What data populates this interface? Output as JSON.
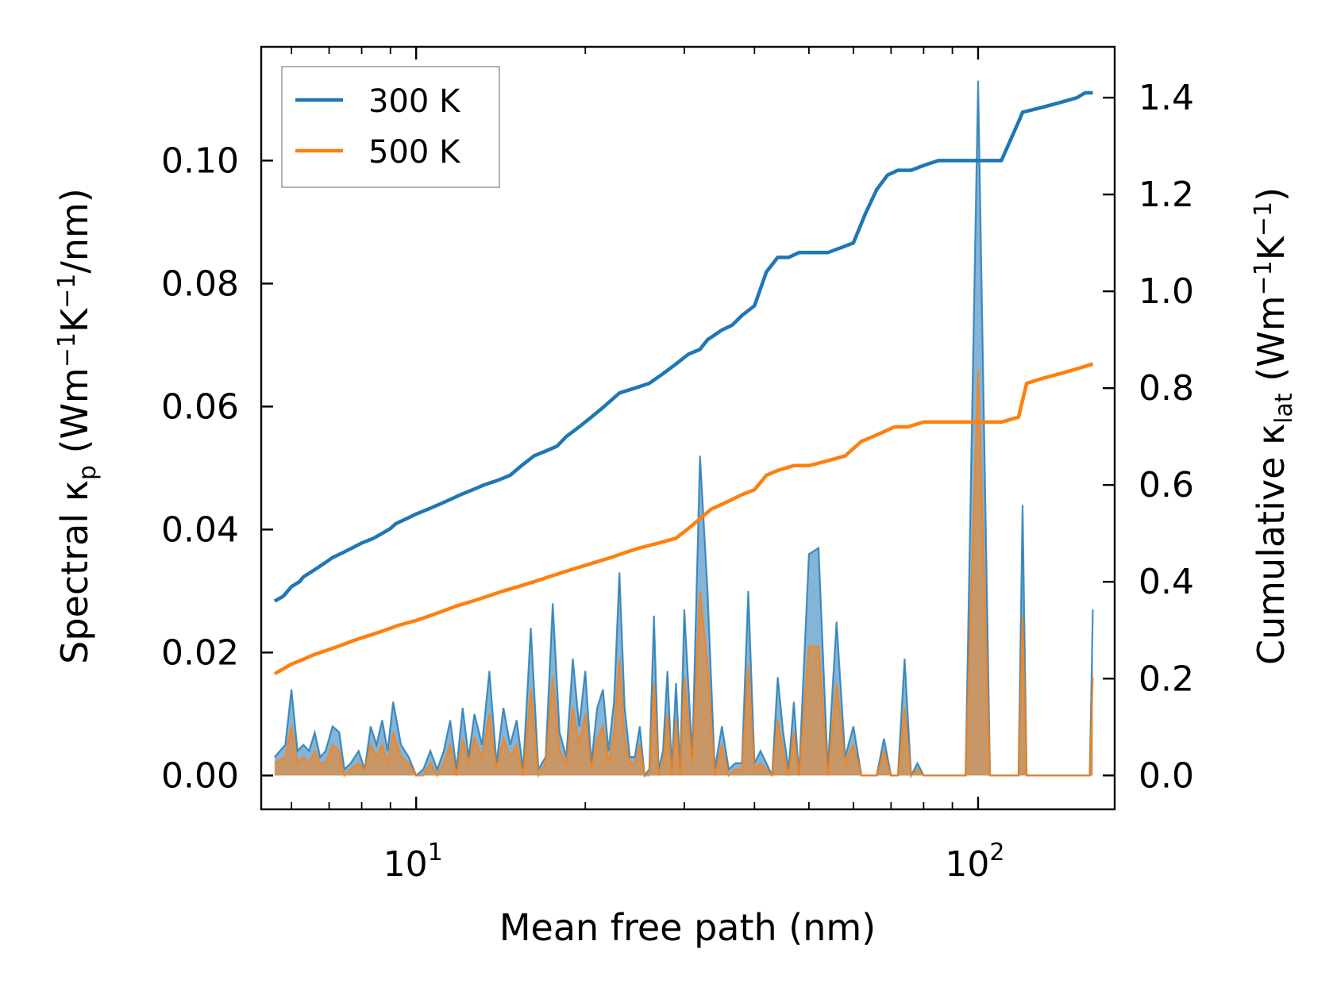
{
  "chart_data": {
    "type": "line",
    "xlabel": "Mean free path (nm)",
    "xscale": "log",
    "xlim": [
      5.3,
      175
    ],
    "x_ticks": [
      {
        "value": 10,
        "base": "10",
        "exp": "1"
      },
      {
        "value": 100,
        "base": "10",
        "exp": "2"
      }
    ],
    "left_axis": {
      "label_prefix": "Spectral κ",
      "label_sub": "p",
      "label_unit_a": " (Wm",
      "label_sup_a": "−1",
      "label_unit_b": "K",
      "label_sup_b": "−1",
      "label_unit_c": "/nm)",
      "ylim": [
        -0.0055,
        0.1185
      ],
      "ticks": [
        0.0,
        0.02,
        0.04,
        0.06,
        0.08,
        0.1
      ],
      "tick_labels": [
        "0.00",
        "0.02",
        "0.04",
        "0.06",
        "0.08",
        "0.10"
      ]
    },
    "right_axis": {
      "label_prefix": "Cumulative κ",
      "label_sub": "lat",
      "label_unit_a": " (Wm",
      "label_sup_a": "−1",
      "label_unit_b": "K",
      "label_sup_b": "−1",
      "label_unit_c": ")",
      "ylim": [
        -0.07,
        1.505
      ],
      "ticks": [
        0.0,
        0.2,
        0.4,
        0.6,
        0.8,
        1.0,
        1.2,
        1.4
      ],
      "tick_labels": [
        "0.0",
        "0.2",
        "0.4",
        "0.6",
        "0.8",
        "1.0",
        "1.2",
        "1.4"
      ]
    },
    "legend": {
      "position": "top-left",
      "entries": [
        {
          "label": "300 K",
          "color": "#1f77b4"
        },
        {
          "label": "500 K",
          "color": "#ff7f0e"
        }
      ]
    },
    "series": [
      {
        "name": "300 K",
        "color": "#1f77b4",
        "axis": "right",
        "kind": "cumulative",
        "x": [
          5.6,
          5.8,
          5.9,
          6.0,
          6.2,
          6.3,
          6.5,
          6.7,
          6.9,
          7.1,
          7.4,
          7.7,
          8.0,
          8.4,
          8.7,
          9.0,
          9.2,
          9.6,
          10.0,
          10.5,
          11.0,
          11.5,
          12.0,
          12.6,
          13.2,
          14.0,
          14.7,
          15.4,
          16.2,
          17.0,
          17.8,
          18.5,
          19.5,
          20.5,
          21.5,
          23.0,
          24.5,
          26.0,
          27.5,
          29.0,
          30.5,
          32.0,
          33.0,
          34.0,
          35.0,
          36.5,
          38.0,
          40.0,
          42.0,
          44.0,
          46.0,
          48.0,
          51.0,
          54.0,
          57.0,
          60.0,
          63.0,
          66.0,
          69.0,
          72.0,
          76.0,
          80.0,
          85.0,
          90.0,
          100.0,
          110.0,
          118.0,
          120.0,
          130.0,
          140.0,
          150.0,
          155.0,
          160.0
        ],
        "y": [
          0.36,
          0.37,
          0.38,
          0.39,
          0.4,
          0.41,
          0.42,
          0.43,
          0.44,
          0.45,
          0.46,
          0.47,
          0.48,
          0.49,
          0.5,
          0.51,
          0.52,
          0.53,
          0.54,
          0.55,
          0.56,
          0.57,
          0.58,
          0.59,
          0.6,
          0.61,
          0.62,
          0.64,
          0.66,
          0.67,
          0.68,
          0.7,
          0.72,
          0.74,
          0.76,
          0.79,
          0.8,
          0.81,
          0.83,
          0.85,
          0.87,
          0.88,
          0.9,
          0.91,
          0.92,
          0.93,
          0.95,
          0.97,
          1.04,
          1.07,
          1.07,
          1.08,
          1.08,
          1.08,
          1.09,
          1.1,
          1.16,
          1.21,
          1.24,
          1.25,
          1.25,
          1.26,
          1.27,
          1.27,
          1.27,
          1.27,
          1.35,
          1.37,
          1.38,
          1.39,
          1.4,
          1.41,
          1.41
        ]
      },
      {
        "name": "500 K",
        "color": "#ff7f0e",
        "axis": "right",
        "kind": "cumulative",
        "x": [
          5.6,
          5.8,
          6.0,
          6.3,
          6.6,
          7.0,
          7.4,
          7.8,
          8.3,
          8.8,
          9.3,
          10.0,
          10.6,
          11.2,
          11.8,
          12.6,
          13.4,
          14.2,
          15.2,
          16.2,
          17.2,
          18.3,
          19.5,
          20.8,
          22.2,
          23.5,
          25.0,
          27.0,
          29.0,
          30.5,
          32.0,
          33.5,
          35.0,
          36.5,
          38.0,
          40.0,
          42.0,
          44.0,
          47.0,
          50.0,
          54.0,
          58.0,
          62.0,
          65.0,
          68.0,
          71.0,
          75.0,
          80.0,
          85.0,
          90.0,
          100.0,
          110.0,
          118.0,
          122.0,
          130.0,
          140.0,
          150.0,
          160.0
        ],
        "y": [
          0.21,
          0.22,
          0.23,
          0.24,
          0.25,
          0.26,
          0.27,
          0.28,
          0.29,
          0.3,
          0.31,
          0.32,
          0.33,
          0.34,
          0.35,
          0.36,
          0.37,
          0.38,
          0.39,
          0.4,
          0.41,
          0.42,
          0.43,
          0.44,
          0.45,
          0.46,
          0.47,
          0.48,
          0.49,
          0.51,
          0.53,
          0.55,
          0.56,
          0.57,
          0.58,
          0.59,
          0.62,
          0.63,
          0.64,
          0.64,
          0.65,
          0.66,
          0.69,
          0.7,
          0.71,
          0.72,
          0.72,
          0.73,
          0.73,
          0.73,
          0.73,
          0.73,
          0.74,
          0.81,
          0.82,
          0.83,
          0.84,
          0.85
        ]
      },
      {
        "name": "300 K",
        "color": "#1f77b4",
        "axis": "left",
        "kind": "spectral",
        "x": [
          5.6,
          5.85,
          6.0,
          6.15,
          6.3,
          6.45,
          6.6,
          6.75,
          6.9,
          7.1,
          7.3,
          7.45,
          7.65,
          7.9,
          8.1,
          8.3,
          8.5,
          8.7,
          8.9,
          9.1,
          9.4,
          9.7,
          10.0,
          10.3,
          10.6,
          10.9,
          11.2,
          11.5,
          11.8,
          12.1,
          12.4,
          12.7,
          13.1,
          13.5,
          13.9,
          14.3,
          14.7,
          15.1,
          15.5,
          16.0,
          16.5,
          17.0,
          17.5,
          18.0,
          18.5,
          19.0,
          19.5,
          20.0,
          20.5,
          21.0,
          21.5,
          22.0,
          22.5,
          23.0,
          23.5,
          24.0,
          24.5,
          25.0,
          25.5,
          26.0,
          26.5,
          27.0,
          27.5,
          28.0,
          28.5,
          29.0,
          29.5,
          30.0,
          31.0,
          32.0,
          33.0,
          34.0,
          35.0,
          36.0,
          37.0,
          38.0,
          39.0,
          40.0,
          41.0,
          42.0,
          43.0,
          44.0,
          45.0,
          46.0,
          47.0,
          48.0,
          50.0,
          52.0,
          54.0,
          56.0,
          58.0,
          60.0,
          62.0,
          64.0,
          66.0,
          68.0,
          70.0,
          72.0,
          74.0,
          76.0,
          78.0,
          80.0,
          82.0,
          84.0,
          86.0,
          88.0,
          90.0,
          95.0,
          100.0,
          105.0,
          110.0,
          114.0,
          116.0,
          118.0,
          120.0,
          122.0,
          124.0,
          126.0,
          128.0,
          130.0,
          132.0,
          134.0,
          136.0,
          138.0,
          140.0,
          145.0,
          150.0,
          152.0,
          154.0,
          156.0,
          158.0,
          160.0
        ],
        "y": [
          0.003,
          0.005,
          0.014,
          0.004,
          0.005,
          0.004,
          0.007,
          0.003,
          0.004,
          0.008,
          0.007,
          0.001,
          0.002,
          0.004,
          0.001,
          0.008,
          0.005,
          0.009,
          0.004,
          0.012,
          0.005,
          0.003,
          0.0,
          0.001,
          0.004,
          0.001,
          0.004,
          0.009,
          0.001,
          0.011,
          0.003,
          0.01,
          0.005,
          0.017,
          0.002,
          0.011,
          0.005,
          0.009,
          0.001,
          0.024,
          0.001,
          0.003,
          0.028,
          0.007,
          0.003,
          0.019,
          0.008,
          0.017,
          0.002,
          0.011,
          0.014,
          0.004,
          0.012,
          0.033,
          0.011,
          0.003,
          0.003,
          0.008,
          0.0,
          0.001,
          0.026,
          0.001,
          0.004,
          0.017,
          0.001,
          0.015,
          0.001,
          0.027,
          0.003,
          0.052,
          0.03,
          0.001,
          0.008,
          0.001,
          0.002,
          0.002,
          0.03,
          0.002,
          0.004,
          0.002,
          0.0,
          0.016,
          0.007,
          0.001,
          0.012,
          0.0,
          0.036,
          0.037,
          0.001,
          0.025,
          0.003,
          0.008,
          0.0,
          0.0,
          0.0,
          0.006,
          0.0,
          0.0,
          0.019,
          0.0,
          0.002,
          0.0,
          0.0,
          0.0,
          0.0,
          0.0,
          0.0,
          0.0,
          0.113,
          0.0,
          0.0,
          0.0,
          0.0,
          0.0,
          0.044,
          0.0,
          0.0,
          0.0,
          0.0,
          0.0,
          0.0,
          0.0,
          0.0,
          0.0,
          0.0,
          0.0,
          0.0,
          0.0,
          0.0,
          0.0,
          0.0,
          0.027
        ]
      },
      {
        "name": "500 K",
        "color": "#ff7f0e",
        "axis": "left",
        "kind": "spectral",
        "x": [
          5.6,
          5.85,
          6.0,
          6.15,
          6.3,
          6.45,
          6.6,
          6.75,
          6.9,
          7.1,
          7.3,
          7.45,
          7.65,
          7.9,
          8.1,
          8.3,
          8.5,
          8.7,
          8.9,
          9.1,
          9.4,
          9.7,
          10.0,
          10.3,
          10.6,
          10.9,
          11.2,
          11.5,
          11.8,
          12.1,
          12.4,
          12.7,
          13.1,
          13.5,
          13.9,
          14.3,
          14.7,
          15.1,
          15.5,
          16.0,
          16.5,
          17.0,
          17.5,
          18.0,
          18.5,
          19.0,
          19.5,
          20.0,
          20.5,
          21.0,
          21.5,
          22.0,
          22.5,
          23.0,
          23.5,
          24.0,
          24.5,
          25.0,
          25.5,
          26.0,
          26.5,
          27.0,
          27.5,
          28.0,
          28.5,
          29.0,
          29.5,
          30.0,
          31.0,
          32.0,
          33.0,
          34.0,
          35.0,
          36.0,
          37.0,
          38.0,
          39.0,
          40.0,
          41.0,
          42.0,
          43.0,
          44.0,
          45.0,
          46.0,
          47.0,
          48.0,
          50.0,
          52.0,
          54.0,
          56.0,
          58.0,
          60.0,
          62.0,
          64.0,
          66.0,
          68.0,
          70.0,
          72.0,
          74.0,
          76.0,
          78.0,
          80.0,
          82.0,
          84.0,
          86.0,
          88.0,
          90.0,
          95.0,
          100.0,
          105.0,
          110.0,
          114.0,
          116.0,
          118.0,
          120.0,
          122.0,
          124.0,
          126.0,
          128.0,
          130.0,
          132.0,
          134.0,
          136.0,
          138.0,
          140.0,
          145.0,
          150.0,
          152.0,
          154.0,
          156.0,
          158.0,
          160.0
        ],
        "y": [
          0.002,
          0.003,
          0.008,
          0.002,
          0.003,
          0.002,
          0.004,
          0.002,
          0.002,
          0.005,
          0.004,
          0.0,
          0.001,
          0.002,
          0.001,
          0.005,
          0.003,
          0.005,
          0.002,
          0.007,
          0.003,
          0.002,
          0.0,
          0.0,
          0.002,
          0.0,
          0.002,
          0.005,
          0.0,
          0.006,
          0.002,
          0.006,
          0.003,
          0.01,
          0.001,
          0.006,
          0.003,
          0.005,
          0.0,
          0.014,
          0.0,
          0.002,
          0.016,
          0.004,
          0.002,
          0.011,
          0.005,
          0.01,
          0.001,
          0.006,
          0.008,
          0.002,
          0.007,
          0.019,
          0.006,
          0.002,
          0.002,
          0.005,
          0.0,
          0.0,
          0.015,
          0.0,
          0.002,
          0.01,
          0.0,
          0.009,
          0.0,
          0.016,
          0.002,
          0.03,
          0.018,
          0.0,
          0.005,
          0.0,
          0.001,
          0.001,
          0.018,
          0.001,
          0.002,
          0.001,
          0.0,
          0.009,
          0.004,
          0.0,
          0.007,
          0.0,
          0.021,
          0.021,
          0.0,
          0.015,
          0.002,
          0.005,
          0.0,
          0.0,
          0.0,
          0.004,
          0.0,
          0.0,
          0.011,
          0.0,
          0.001,
          0.0,
          0.0,
          0.0,
          0.0,
          0.0,
          0.0,
          0.0,
          0.066,
          0.0,
          0.0,
          0.0,
          0.0,
          0.0,
          0.026,
          0.0,
          0.0,
          0.0,
          0.0,
          0.0,
          0.0,
          0.0,
          0.0,
          0.0,
          0.0,
          0.0,
          0.0,
          0.0,
          0.0,
          0.0,
          0.0,
          0.016
        ]
      }
    ]
  }
}
